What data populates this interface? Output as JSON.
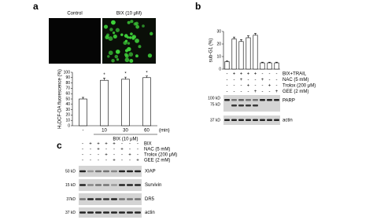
{
  "panels": {
    "a": {
      "letter": "a",
      "image_labels": [
        "Control",
        "BIX (10 μM)"
      ]
    },
    "b": {
      "letter": "b",
      "rows": [
        {
          "label": "BIX+TRAIL",
          "signs": [
            "-",
            "+",
            "+",
            "+",
            "+",
            "-",
            "-",
            "-"
          ]
        },
        {
          "label": "NAC (5 mM)",
          "signs": [
            "-",
            "-",
            "+",
            "-",
            "-",
            "+",
            "-",
            "-"
          ]
        },
        {
          "label": "Trolox (200 μM)",
          "signs": [
            "-",
            "-",
            "-",
            "+",
            "-",
            "-",
            "+",
            "-"
          ]
        },
        {
          "label": "GEE (2 mM)",
          "signs": [
            "-",
            "-",
            "-",
            "-",
            "+",
            "-",
            "-",
            "+"
          ]
        }
      ],
      "blot_markers": [
        "100 kD",
        "75 kD",
        "37 kD"
      ],
      "blot_labels": [
        "PARP",
        "actin"
      ]
    },
    "c": {
      "letter": "c",
      "rows": [
        {
          "label": "BIX",
          "signs": [
            "-",
            "+",
            "+",
            "+",
            "+",
            "-",
            "-",
            "-"
          ]
        },
        {
          "label": "NAC (5 mM)",
          "signs": [
            "-",
            "-",
            "+",
            "-",
            "-",
            "+",
            "-",
            "-"
          ]
        },
        {
          "label": "Trolox (200 μM)",
          "signs": [
            "-",
            "-",
            "-",
            "+",
            "-",
            "-",
            "+",
            "-"
          ]
        },
        {
          "label": "GEE (2 mM)",
          "signs": [
            "-",
            "-",
            "-",
            "-",
            "+",
            "-",
            "-",
            "+"
          ]
        }
      ],
      "blot_markers": [
        "50 kD",
        "15 kD",
        "37kD",
        "37 kD"
      ],
      "blot_labels": [
        "XIAP",
        "Survivin",
        "DR5",
        "actin"
      ]
    }
  },
  "chart_data": [
    {
      "type": "bar",
      "y_label": "H₂DCF-DA fluorescence (%)",
      "x_label": "BIX (10 μM)",
      "x_unit": "(min)",
      "categories": [
        "-",
        "10",
        "30",
        "60"
      ],
      "values": [
        50,
        85,
        87,
        90
      ],
      "errors": [
        3,
        4,
        4,
        3
      ],
      "color": "#ffffff",
      "ylim": [
        0,
        100
      ],
      "yticks": [
        0,
        10,
        20,
        30,
        40,
        50,
        60,
        70,
        80,
        90,
        100
      ],
      "annotations": [
        {
          "text": "*",
          "x": "10"
        },
        {
          "text": "*",
          "x": "30"
        },
        {
          "text": "*",
          "x": "60"
        }
      ]
    },
    {
      "type": "bar",
      "y_label": "sub-G1 (%)",
      "categories": [
        null,
        null,
        null,
        null,
        null,
        null,
        null,
        null
      ],
      "values": [
        6,
        24,
        22,
        25,
        27,
        5,
        5,
        5
      ],
      "errors": [
        0.5,
        1.5,
        1.5,
        1.5,
        1.5,
        0.5,
        0.5,
        0.5
      ],
      "color": "#ffffff",
      "ylim": [
        0,
        30
      ],
      "yticks": [
        0,
        10,
        20,
        30
      ]
    }
  ]
}
